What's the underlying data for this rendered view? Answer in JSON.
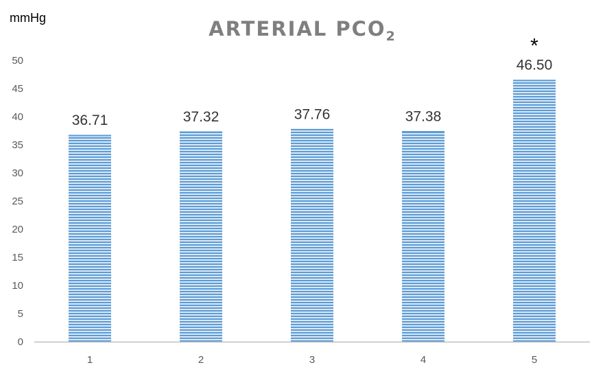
{
  "chart_data": {
    "type": "bar",
    "title": "ARTERIAL PCO",
    "title_subscript": "2",
    "ylabel": "mmHg",
    "xlabel": "",
    "categories": [
      "1",
      "2",
      "3",
      "4",
      "5"
    ],
    "values": [
      36.71,
      37.32,
      37.76,
      37.38,
      46.5
    ],
    "data_labels": [
      "36.71",
      "37.32",
      "37.76",
      "37.38",
      "46.50"
    ],
    "annotations": [
      "",
      "",
      "",
      "",
      "*"
    ],
    "ylim": [
      0,
      50
    ],
    "yticks": [
      0,
      5,
      10,
      15,
      20,
      25,
      30,
      35,
      40,
      45,
      50
    ],
    "grid": false,
    "legend": "none",
    "bar_color": "#5b9bd5",
    "bar_stripe_color": "#dbe8f5",
    "axis_color": "#bfbfbf"
  }
}
